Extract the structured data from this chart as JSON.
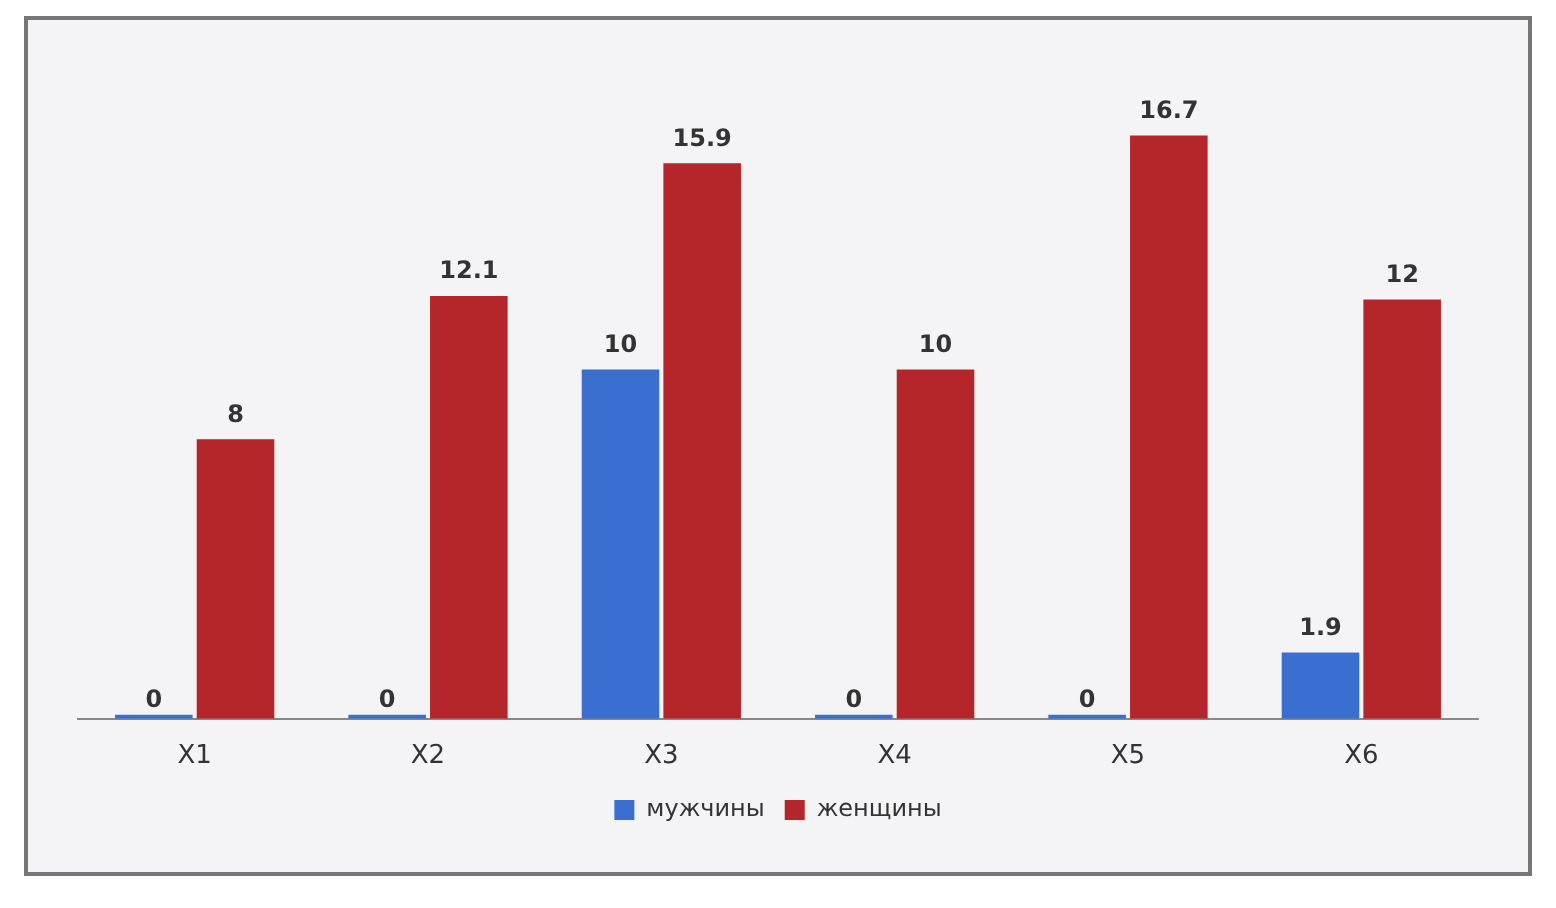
{
  "chart_data": {
    "type": "bar",
    "categories": [
      "X1",
      "X2",
      "X3",
      "X4",
      "X5",
      "X6"
    ],
    "series": [
      {
        "name": "мужчины",
        "color": "#3a6fcf",
        "values": [
          0,
          0,
          10,
          0,
          0,
          1.9
        ]
      },
      {
        "name": "женщины",
        "color": "#b5262a",
        "values": [
          8,
          12.1,
          15.9,
          10,
          16.7,
          12
        ]
      }
    ],
    "data_labels": true,
    "legend": "bottom",
    "grid": false
  }
}
